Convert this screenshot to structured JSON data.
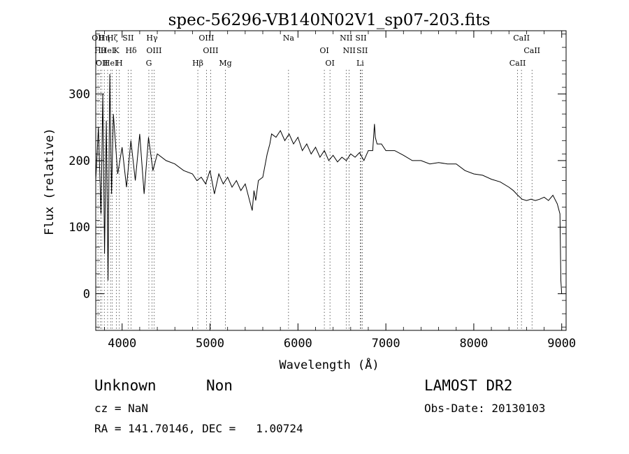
{
  "chart_data": {
    "type": "line",
    "title": "spec-56296-VB140N02V1_sp07-203.fits",
    "xlabel": "Wavelength (Å)",
    "ylabel": "Flux (relative)",
    "xlim": [
      3700,
      9050
    ],
    "ylim": [
      -55,
      395
    ],
    "xticks": [
      4000,
      5000,
      6000,
      7000,
      8000,
      9000
    ],
    "yticks": [
      0,
      100,
      200,
      300
    ],
    "grid": false,
    "series": [
      {
        "x": [
          3700,
          3730,
          3760,
          3780,
          3800,
          3820,
          3840,
          3860,
          3880,
          3900,
          3950,
          4000,
          4050,
          4100,
          4150,
          4200,
          4250,
          4300,
          4350,
          4400,
          4500,
          4600,
          4700,
          4800,
          4850,
          4900,
          4950,
          5000,
          5050,
          5100,
          5150,
          5200,
          5250,
          5300,
          5350,
          5400,
          5450,
          5480,
          5500,
          5520,
          5550,
          5600,
          5650,
          5680,
          5700,
          5750,
          5800,
          5850,
          5900,
          5950,
          6000,
          6050,
          6100,
          6150,
          6200,
          6250,
          6300,
          6350,
          6400,
          6450,
          6500,
          6550,
          6600,
          6650,
          6700,
          6750,
          6800,
          6850,
          6870,
          6880,
          6900,
          6950,
          7000,
          7100,
          7200,
          7300,
          7400,
          7500,
          7600,
          7700,
          7800,
          7900,
          8000,
          8100,
          8200,
          8300,
          8400,
          8450,
          8500,
          8550,
          8600,
          8650,
          8700,
          8750,
          8800,
          8850,
          8900,
          8950,
          8980,
          8990,
          9000
        ],
        "values": [
          170,
          250,
          120,
          300,
          60,
          260,
          20,
          330,
          150,
          270,
          180,
          220,
          160,
          230,
          170,
          240,
          150,
          235,
          185,
          210,
          200,
          195,
          185,
          180,
          170,
          175,
          165,
          185,
          150,
          180,
          165,
          175,
          160,
          170,
          155,
          165,
          140,
          125,
          155,
          140,
          170,
          175,
          210,
          225,
          240,
          235,
          245,
          230,
          240,
          225,
          235,
          215,
          225,
          210,
          220,
          205,
          215,
          200,
          208,
          198,
          205,
          200,
          210,
          205,
          212,
          200,
          215,
          215,
          255,
          235,
          225,
          225,
          215,
          215,
          208,
          200,
          200,
          195,
          197,
          195,
          195,
          185,
          180,
          178,
          172,
          168,
          160,
          155,
          148,
          142,
          140,
          142,
          140,
          142,
          145,
          140,
          148,
          135,
          120,
          20,
          0
        ]
      }
    ],
    "lines": [
      {
        "x": 3725,
        "label": "OII"
      },
      {
        "x": 3750,
        "label": "Hθ"
      },
      {
        "x": 3770,
        "label": "OII"
      },
      {
        "x": 3797,
        "label": "Hη"
      },
      {
        "x": 3835,
        "label": "HeI"
      },
      {
        "x": 3868,
        "label": "HeI"
      },
      {
        "x": 3889,
        "label": "Hζ"
      },
      {
        "x": 3934,
        "label": "K"
      },
      {
        "x": 3969,
        "label": "H"
      },
      {
        "x": 4069,
        "label": "SII"
      },
      {
        "x": 4102,
        "label": "Hδ"
      },
      {
        "x": 4304,
        "label": "G"
      },
      {
        "x": 4340,
        "label": "Hγ"
      },
      {
        "x": 4363,
        "label": "OIII"
      },
      {
        "x": 4861,
        "label": "Hβ"
      },
      {
        "x": 4959,
        "label": "OIII"
      },
      {
        "x": 5007,
        "label": "OIII"
      },
      {
        "x": 5175,
        "label": "Mg"
      },
      {
        "x": 5893,
        "label": "Na"
      },
      {
        "x": 6300,
        "label": "OI"
      },
      {
        "x": 6364,
        "label": "OI"
      },
      {
        "x": 6548,
        "label": "NII"
      },
      {
        "x": 6583,
        "label": "NII"
      },
      {
        "x": 6708,
        "label": "Li"
      },
      {
        "x": 6717,
        "label": "SII"
      },
      {
        "x": 6731,
        "label": "SII"
      },
      {
        "x": 8498,
        "label": "CaII"
      },
      {
        "x": 8542,
        "label": "CaII"
      },
      {
        "x": 8662,
        "label": "CaII"
      }
    ]
  },
  "info": {
    "class": "Unknown",
    "subclass": "Non",
    "survey": "LAMOST DR2",
    "cz": "cz = NaN",
    "obs_date": "Obs-Date: 20130103",
    "coords": "RA = 141.70146, DEC =   1.00724"
  },
  "colors": {
    "line": "#000000",
    "background": "#ffffff"
  }
}
